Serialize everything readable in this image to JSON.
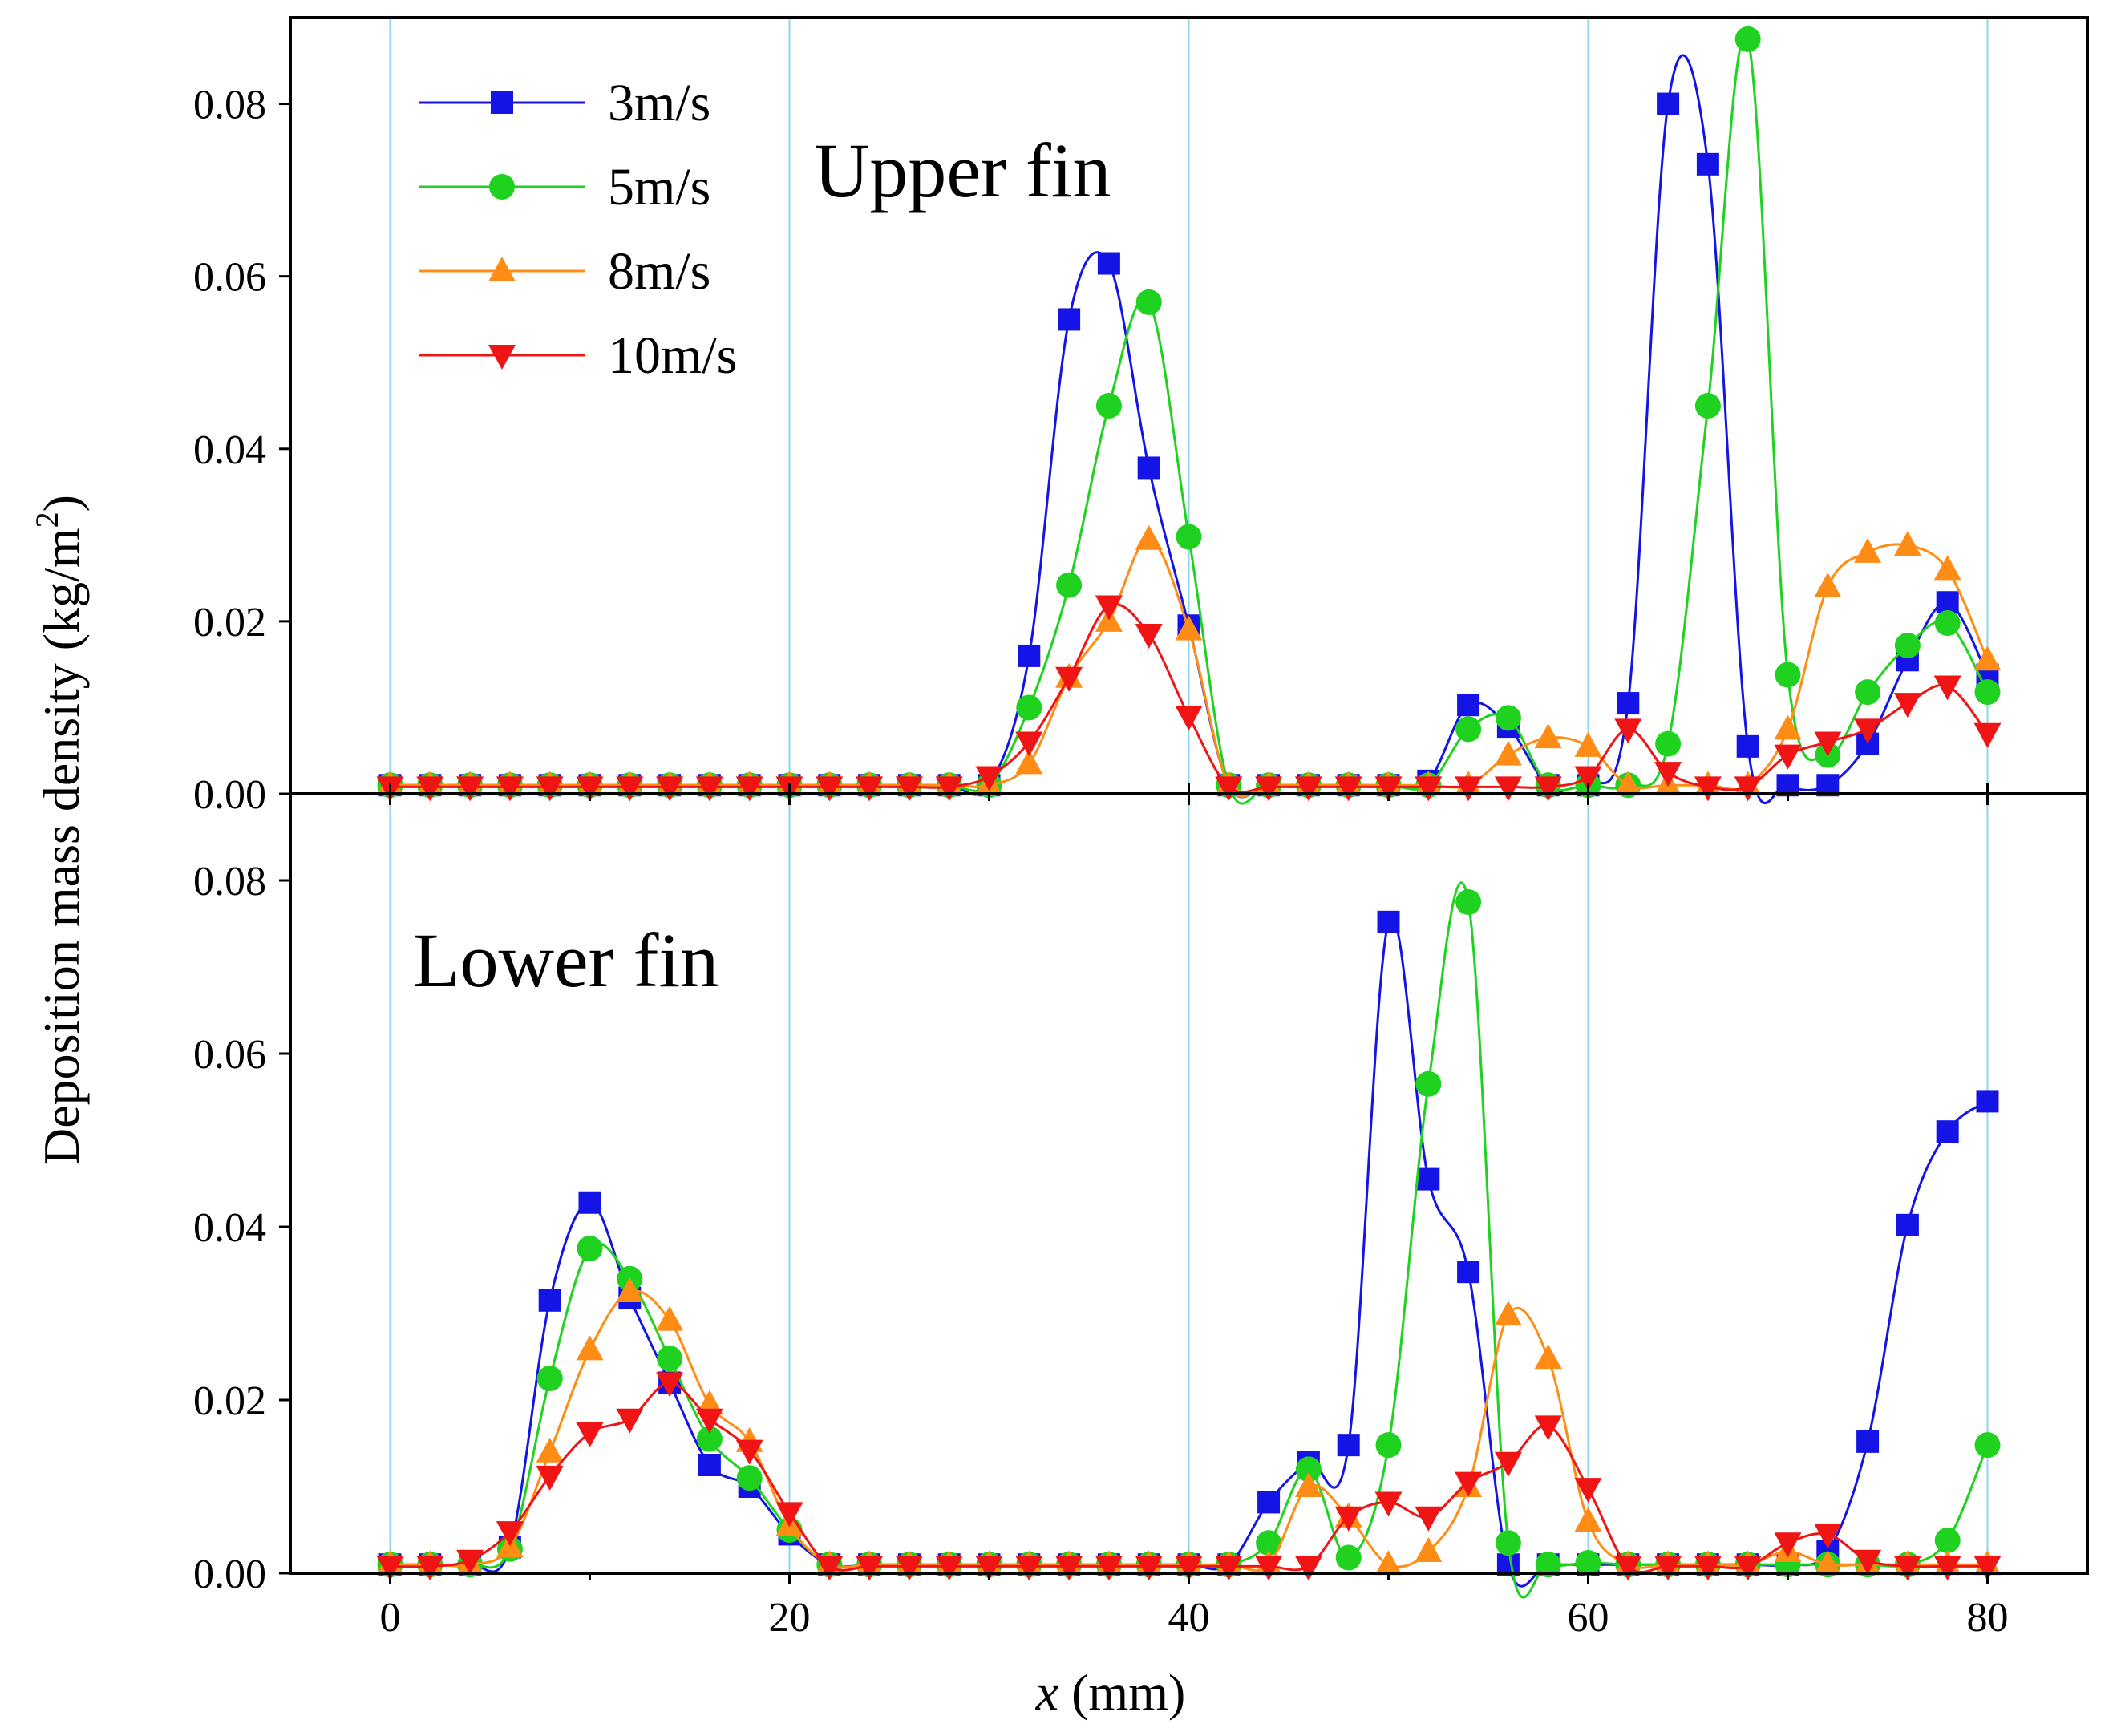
{
  "chart_data": {
    "type": "line",
    "xlabel": {
      "var": "x",
      "unit": " (mm)"
    },
    "ylabel": {
      "text": "Deposition mass density (kg/m",
      "sup": "2",
      "close": ")"
    },
    "xlim": [
      -5,
      85
    ],
    "xticks": [
      0,
      20,
      40,
      60,
      80
    ],
    "xtick_labels": [
      "0",
      "20",
      "40",
      "60",
      "80"
    ],
    "ylim": [
      0,
      0.09
    ],
    "yticks": [
      0,
      0.02,
      0.04,
      0.06,
      0.08
    ],
    "ytick_labels": [
      "0.00",
      "0.02",
      "0.04",
      "0.06",
      "0.08"
    ],
    "vertical_gridlines": [
      0,
      20,
      40,
      60,
      80
    ],
    "legend": {
      "position": "top-left of upper panel"
    },
    "series_meta": [
      {
        "key": "3",
        "name": "3m/s",
        "color": "#1414E6",
        "marker": "square"
      },
      {
        "key": "5",
        "name": "5m/s",
        "color": "#1FD21F",
        "marker": "circle"
      },
      {
        "key": "8",
        "name": "8m/s",
        "color": "#FF8C14",
        "marker": "triangle-up"
      },
      {
        "key": "10",
        "name": "10m/s",
        "color": "#F01414",
        "marker": "triangle-down"
      }
    ],
    "panels": [
      {
        "title": "Upper fin",
        "x": [
          0,
          2,
          4,
          6,
          8,
          10,
          12,
          14,
          16,
          18,
          20,
          22,
          24,
          26,
          28,
          30,
          32,
          34,
          36,
          38,
          40,
          42,
          44,
          46,
          48,
          50,
          52,
          54,
          56,
          58,
          60,
          62,
          64,
          66,
          68,
          70,
          72,
          74,
          76,
          78,
          80
        ],
        "series": {
          "3": [
            0.001,
            0.001,
            0.001,
            0.001,
            0.001,
            0.001,
            0.001,
            0.001,
            0.001,
            0.001,
            0.001,
            0.001,
            0.001,
            0.001,
            0.001,
            0.001,
            0.016,
            0.055,
            0.0615,
            0.0378,
            0.0195,
            0.001,
            0.001,
            0.001,
            0.001,
            0.001,
            0.0015,
            0.0103,
            0.0078,
            0.001,
            0.001,
            0.0105,
            0.08,
            0.073,
            0.0055,
            0.001,
            0.001,
            0.0058,
            0.0155,
            0.0222,
            0.0138
          ],
          "5": [
            0.001,
            0.001,
            0.001,
            0.001,
            0.001,
            0.001,
            0.001,
            0.001,
            0.001,
            0.001,
            0.001,
            0.001,
            0.001,
            0.001,
            0.001,
            0.001,
            0.01,
            0.0242,
            0.045,
            0.057,
            0.0298,
            0.001,
            0.001,
            0.001,
            0.001,
            0.001,
            0.001,
            0.0075,
            0.0088,
            0.001,
            0.001,
            0.001,
            0.0058,
            0.045,
            0.0875,
            0.0138,
            0.0045,
            0.0118,
            0.0172,
            0.0198,
            0.0118
          ],
          "8": [
            0.001,
            0.001,
            0.001,
            0.001,
            0.001,
            0.001,
            0.001,
            0.001,
            0.001,
            0.001,
            0.001,
            0.001,
            0.001,
            0.001,
            0.001,
            0.001,
            0.0035,
            0.0135,
            0.02,
            0.0295,
            0.019,
            0.001,
            0.001,
            0.001,
            0.001,
            0.001,
            0.001,
            0.001,
            0.0045,
            0.0065,
            0.0055,
            0.001,
            0.001,
            0.001,
            0.001,
            0.0075,
            0.024,
            0.028,
            0.0288,
            0.026,
            0.0155
          ],
          "10": [
            0.0008,
            0.0008,
            0.0008,
            0.0008,
            0.0008,
            0.0008,
            0.0008,
            0.0008,
            0.0008,
            0.0008,
            0.0008,
            0.0008,
            0.0008,
            0.0008,
            0.0008,
            0.002,
            0.006,
            0.0135,
            0.0218,
            0.0185,
            0.009,
            0.0008,
            0.0008,
            0.0008,
            0.0008,
            0.0008,
            0.0008,
            0.0008,
            0.0008,
            0.0008,
            0.002,
            0.0075,
            0.0025,
            0.0008,
            0.0008,
            0.0045,
            0.006,
            0.0075,
            0.0105,
            0.0125,
            0.007
          ]
        }
      },
      {
        "title": "Lower fin",
        "x": [
          0,
          2,
          4,
          6,
          8,
          10,
          12,
          14,
          16,
          18,
          20,
          22,
          24,
          26,
          28,
          30,
          32,
          34,
          36,
          38,
          40,
          42,
          44,
          46,
          48,
          50,
          52,
          54,
          56,
          58,
          60,
          62,
          64,
          66,
          68,
          70,
          72,
          74,
          76,
          78,
          80
        ],
        "series": {
          "3": [
            0.001,
            0.001,
            0.001,
            0.003,
            0.0315,
            0.0428,
            0.0318,
            0.022,
            0.0125,
            0.01,
            0.0045,
            0.001,
            0.001,
            0.001,
            0.001,
            0.001,
            0.001,
            0.001,
            0.001,
            0.001,
            0.001,
            0.001,
            0.0082,
            0.0128,
            0.0148,
            0.0752,
            0.0455,
            0.0348,
            0.001,
            0.001,
            0.001,
            0.001,
            0.001,
            0.001,
            0.001,
            0.001,
            0.0025,
            0.0152,
            0.0402,
            0.051,
            0.0545
          ],
          "5": [
            0.001,
            0.001,
            0.001,
            0.0028,
            0.0225,
            0.0375,
            0.034,
            0.0248,
            0.0155,
            0.011,
            0.005,
            0.001,
            0.001,
            0.001,
            0.001,
            0.001,
            0.001,
            0.001,
            0.001,
            0.001,
            0.001,
            0.001,
            0.0035,
            0.012,
            0.0018,
            0.0148,
            0.0565,
            0.0775,
            0.0035,
            0.001,
            0.0012,
            0.001,
            0.001,
            0.001,
            0.001,
            0.001,
            0.001,
            0.001,
            0.001,
            0.0038,
            0.0148
          ],
          "8": [
            0.001,
            0.001,
            0.001,
            0.003,
            0.014,
            0.0258,
            0.0325,
            0.0292,
            0.0195,
            0.0152,
            0.0055,
            0.001,
            0.001,
            0.001,
            0.001,
            0.001,
            0.001,
            0.001,
            0.001,
            0.001,
            0.001,
            0.001,
            0.001,
            0.01,
            0.0065,
            0.001,
            0.0025,
            0.01,
            0.0298,
            0.0248,
            0.006,
            0.001,
            0.001,
            0.001,
            0.001,
            0.0025,
            0.001,
            0.001,
            0.001,
            0.001,
            0.001
          ],
          "10": [
            0.0008,
            0.0008,
            0.0015,
            0.0048,
            0.0112,
            0.0162,
            0.0178,
            0.022,
            0.0178,
            0.0142,
            0.007,
            0.0008,
            0.0008,
            0.0008,
            0.0008,
            0.0008,
            0.0008,
            0.0008,
            0.0008,
            0.0008,
            0.0008,
            0.0008,
            0.0008,
            0.0008,
            0.0065,
            0.0082,
            0.0065,
            0.0105,
            0.0128,
            0.017,
            0.0098,
            0.0008,
            0.0008,
            0.0008,
            0.0008,
            0.0035,
            0.0045,
            0.0015,
            0.0008,
            0.0008,
            0.0008
          ]
        }
      }
    ]
  }
}
